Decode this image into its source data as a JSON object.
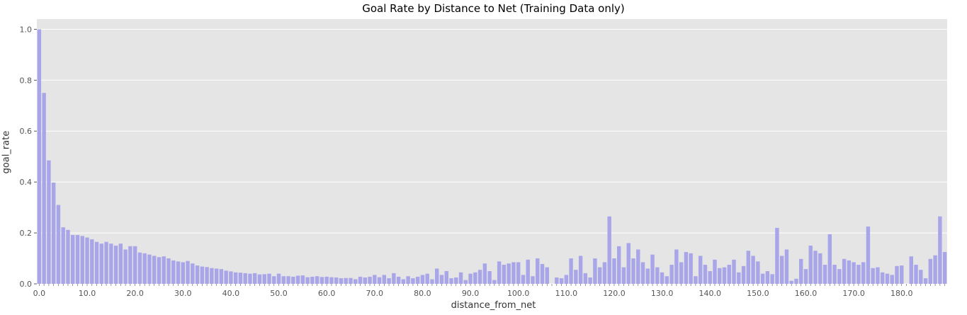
{
  "chart_data": {
    "type": "bar",
    "title": "Goal Rate by Distance to Net (Training Data only)",
    "xlabel": "distance_from_net",
    "ylabel": "goal_rate",
    "ylim": [
      0,
      1.04
    ],
    "yticks": [
      "0.0",
      "0.2",
      "0.4",
      "0.6",
      "0.8",
      "1.0"
    ],
    "ytick_values": [
      0,
      0.2,
      0.4,
      0.6,
      0.8,
      1.0
    ],
    "xticks": [
      "0.0",
      "10.0",
      "20.0",
      "30.0",
      "40.0",
      "50.0",
      "60.0",
      "70.0",
      "80.0",
      "90.0",
      "100.0",
      "110.0",
      "120.0",
      "130.0",
      "140.0",
      "150.0",
      "160.0",
      "170.0",
      "180.0"
    ],
    "xtick_values": [
      0,
      10,
      20,
      30,
      40,
      50,
      60,
      70,
      80,
      90,
      100,
      110,
      120,
      130,
      140,
      150,
      160,
      170,
      180
    ],
    "x_start": 0,
    "bar_color": "#a8a5e8",
    "plot_bg": "#e5e5e5",
    "grid": true,
    "values": [
      1.0,
      0.75,
      0.485,
      0.398,
      0.31,
      0.222,
      0.212,
      0.192,
      0.192,
      0.188,
      0.182,
      0.175,
      0.165,
      0.158,
      0.165,
      0.158,
      0.15,
      0.158,
      0.135,
      0.148,
      0.148,
      0.123,
      0.12,
      0.115,
      0.11,
      0.105,
      0.108,
      0.1,
      0.092,
      0.088,
      0.085,
      0.09,
      0.08,
      0.072,
      0.068,
      0.066,
      0.062,
      0.06,
      0.058,
      0.052,
      0.049,
      0.045,
      0.044,
      0.042,
      0.04,
      0.042,
      0.037,
      0.038,
      0.04,
      0.03,
      0.04,
      0.03,
      0.03,
      0.028,
      0.032,
      0.033,
      0.026,
      0.028,
      0.03,
      0.027,
      0.028,
      0.026,
      0.025,
      0.022,
      0.023,
      0.023,
      0.018,
      0.028,
      0.025,
      0.028,
      0.035,
      0.026,
      0.035,
      0.022,
      0.042,
      0.028,
      0.018,
      0.03,
      0.022,
      0.028,
      0.035,
      0.04,
      0.018,
      0.06,
      0.035,
      0.05,
      0.022,
      0.025,
      0.045,
      0.015,
      0.04,
      0.045,
      0.055,
      0.08,
      0.05,
      0.015,
      0.088,
      0.075,
      0.08,
      0.085,
      0.085,
      0.035,
      0.095,
      0.03,
      0.1,
      0.078,
      0.065,
      0.0,
      0.025,
      0.022,
      0.035,
      0.1,
      0.055,
      0.11,
      0.042,
      0.025,
      0.1,
      0.065,
      0.085,
      0.265,
      0.1,
      0.148,
      0.065,
      0.16,
      0.1,
      0.135,
      0.085,
      0.06,
      0.115,
      0.065,
      0.045,
      0.03,
      0.075,
      0.135,
      0.085,
      0.125,
      0.12,
      0.03,
      0.11,
      0.075,
      0.05,
      0.095,
      0.062,
      0.065,
      0.075,
      0.095,
      0.045,
      0.07,
      0.13,
      0.11,
      0.088,
      0.04,
      0.05,
      0.038,
      0.22,
      0.11,
      0.135,
      0.012,
      0.02,
      0.098,
      0.058,
      0.15,
      0.13,
      0.12,
      0.075,
      0.195,
      0.075,
      0.058,
      0.098,
      0.092,
      0.085,
      0.075,
      0.085,
      0.225,
      0.062,
      0.065,
      0.045,
      0.04,
      0.035,
      0.07,
      0.072,
      0.0,
      0.108,
      0.075,
      0.055,
      0.022,
      0.098,
      0.112,
      0.265,
      0.125
    ]
  }
}
